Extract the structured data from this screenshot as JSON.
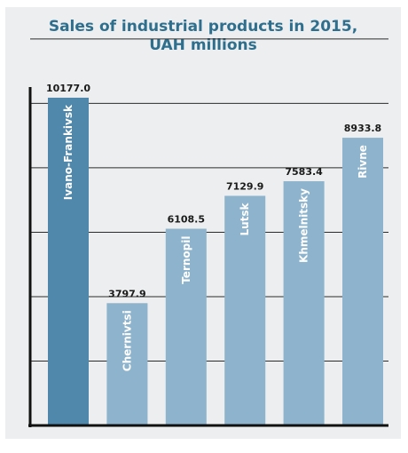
{
  "chart_data": {
    "type": "bar",
    "title_lines": [
      "Sales of industrial products in 2015,",
      "UAH millions"
    ],
    "categories": [
      "Ivano-Frankivsk",
      "Chernivtsi",
      "Ternopil",
      "Lutsk",
      "Khmelnitsky",
      "Rivne"
    ],
    "values": [
      10177.0,
      3797.9,
      6108.5,
      7129.9,
      7583.4,
      8933.8
    ],
    "value_labels": [
      "10177.0",
      "3797.9",
      "6108.5",
      "7129.9",
      "7583.4",
      "8933.8"
    ],
    "ylim": [
      0,
      12000
    ],
    "grid": true,
    "colors": [
      "#5088ab",
      "#8eb3cd",
      "#8eb3cd",
      "#8eb3cd",
      "#8eb3cd",
      "#8eb3cd"
    ],
    "title_color": "#2e6f8e"
  }
}
